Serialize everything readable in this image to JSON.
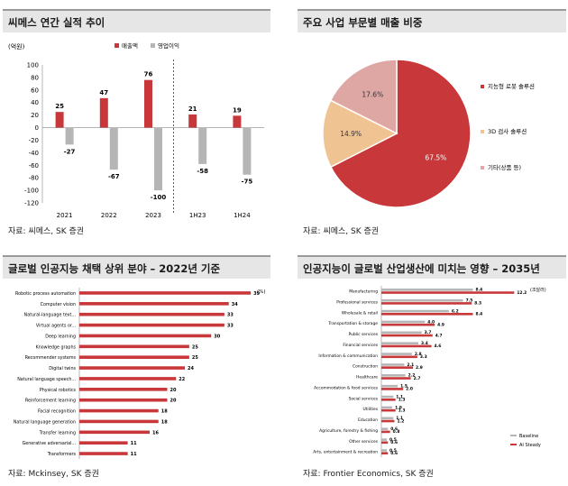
{
  "panels": {
    "p1": {
      "title": "씨메스 연간 실적 추이",
      "source": "자료: 씨메스, SK 증권",
      "chart_data": {
        "type": "bar",
        "unit_label": "(억원)",
        "categories": [
          "2021",
          "2022",
          "2023",
          "1H23",
          "1H24"
        ],
        "series": [
          {
            "name": "매출액",
            "values": [
              25,
              47,
              76,
              21,
              19
            ]
          },
          {
            "name": "영업이익",
            "values": [
              -27,
              -67,
              -100,
              -58,
              -75
            ]
          }
        ],
        "value_labels": [
          [
            "25",
            "47",
            "76",
            "21",
            "19"
          ],
          [
            "-27",
            "-67",
            "-100",
            "-58",
            "-75"
          ]
        ],
        "ylim": [
          -120,
          100
        ],
        "yticks": [
          100,
          80,
          60,
          40,
          20,
          0,
          -20,
          -40,
          -60,
          -80,
          -100,
          -120
        ],
        "ytick_labels": [
          "100",
          "80",
          "60",
          "40",
          "20",
          "0",
          "-20",
          "-40",
          "-60",
          "-80",
          "-100",
          "-120"
        ],
        "divider_after_index": 2,
        "legend": "top"
      }
    },
    "p2": {
      "title": "주요 사업 부문별 매출 비중",
      "source": "자료: 씨메스, SK 증권",
      "chart_data": {
        "type": "pie",
        "slices": [
          {
            "name": "지능형 로봇 솔루션",
            "value": 67.5,
            "label": "67.5%"
          },
          {
            "name": "3D 검사 솔루션",
            "value": 14.9,
            "label": "14.9%"
          },
          {
            "name": "기타(상품 등)",
            "value": 17.6,
            "label": "17.6%"
          }
        ],
        "legend": "right"
      }
    },
    "p3": {
      "title": "글로벌 인공지능 채택 상위 분야 – 2022년 기준",
      "source": "자료: Mckinsey, SK 증권",
      "chart_data": {
        "type": "bar",
        "orientation": "horizontal",
        "unit_label": "(%)",
        "categories": [
          "Robotic process automation",
          "Computer vision",
          "Natural-language text...",
          "Virtual agents or...",
          "Deep learning",
          "Knowledge graphs",
          "Recommender systems",
          "Digital twins",
          "Natural language speech...",
          "Physical robotics",
          "Reinforcement learning",
          "Facial recognition",
          "Natural language generation",
          "Transfer learning",
          "Generative adversarial...",
          "Transformers"
        ],
        "values": [
          39,
          34,
          33,
          33,
          30,
          25,
          25,
          24,
          22,
          20,
          20,
          18,
          18,
          16,
          11,
          11
        ],
        "value_labels": [
          "39",
          "34",
          "33",
          "33",
          "30",
          "25",
          "25",
          "24",
          "22",
          "20",
          "20",
          "18",
          "18",
          "16",
          "11",
          "11"
        ],
        "xlim": [
          0,
          40
        ]
      }
    },
    "p4": {
      "title": "인공지능이 글로벌 산업생산에 미치는 영향 – 2035년",
      "source": "자료: Frontier Economics, SK 증권",
      "chart_data": {
        "type": "bar",
        "orientation": "horizontal",
        "unit_label": "(조달러)",
        "categories": [
          "Manufacturing",
          "Professional services",
          "Wholesale & retail",
          "Transportation & storage",
          "Public services",
          "Financial services",
          "Information & communication",
          "Construction",
          "Healthcare",
          "Accommodation & food services",
          "Social services",
          "Utilities",
          "Education",
          "Agriculture, forestry & fishing",
          "Other services",
          "Arts, entertainment & recreation"
        ],
        "series": [
          {
            "name": "Baseline",
            "values": [
              8.4,
              7.5,
              6.2,
              4.0,
              3.7,
              3.4,
              2.8,
              2.1,
              2.2,
              1.5,
              1.1,
              1.0,
              1.1,
              0.6,
              0.5,
              0.5
            ]
          },
          {
            "name": "AI Steady",
            "values": [
              12.2,
              8.3,
              8.4,
              4.9,
              4.7,
              4.6,
              3.3,
              2.9,
              2.7,
              2.0,
              1.3,
              1.3,
              1.2,
              0.8,
              0.6,
              0.6
            ]
          }
        ],
        "value_labels": [
          [
            "8.4",
            "7.5",
            "6.2",
            "4.0",
            "3.7",
            "3.4",
            "2.8",
            "2.1",
            "2.2",
            "1.5",
            "1.1",
            "1.0",
            "1.1",
            "0.6",
            "0.5",
            "0.5"
          ],
          [
            "12.2",
            "8.3",
            "8.4",
            "4.9",
            "4.7",
            "4.6",
            "3.3",
            "2.9",
            "2.7",
            "2.0",
            "1.3",
            "1.3",
            "1.2",
            "0.8",
            "0.6",
            "0.6"
          ]
        ],
        "xlim": [
          0,
          13
        ],
        "legend": "bottom-right"
      }
    }
  },
  "colors": {
    "red": "#c8383a",
    "gray": "#b5b5b5",
    "pie_red": "#c8383a",
    "pie_peach": "#f0c392",
    "pie_pink": "#dfa7a4"
  }
}
